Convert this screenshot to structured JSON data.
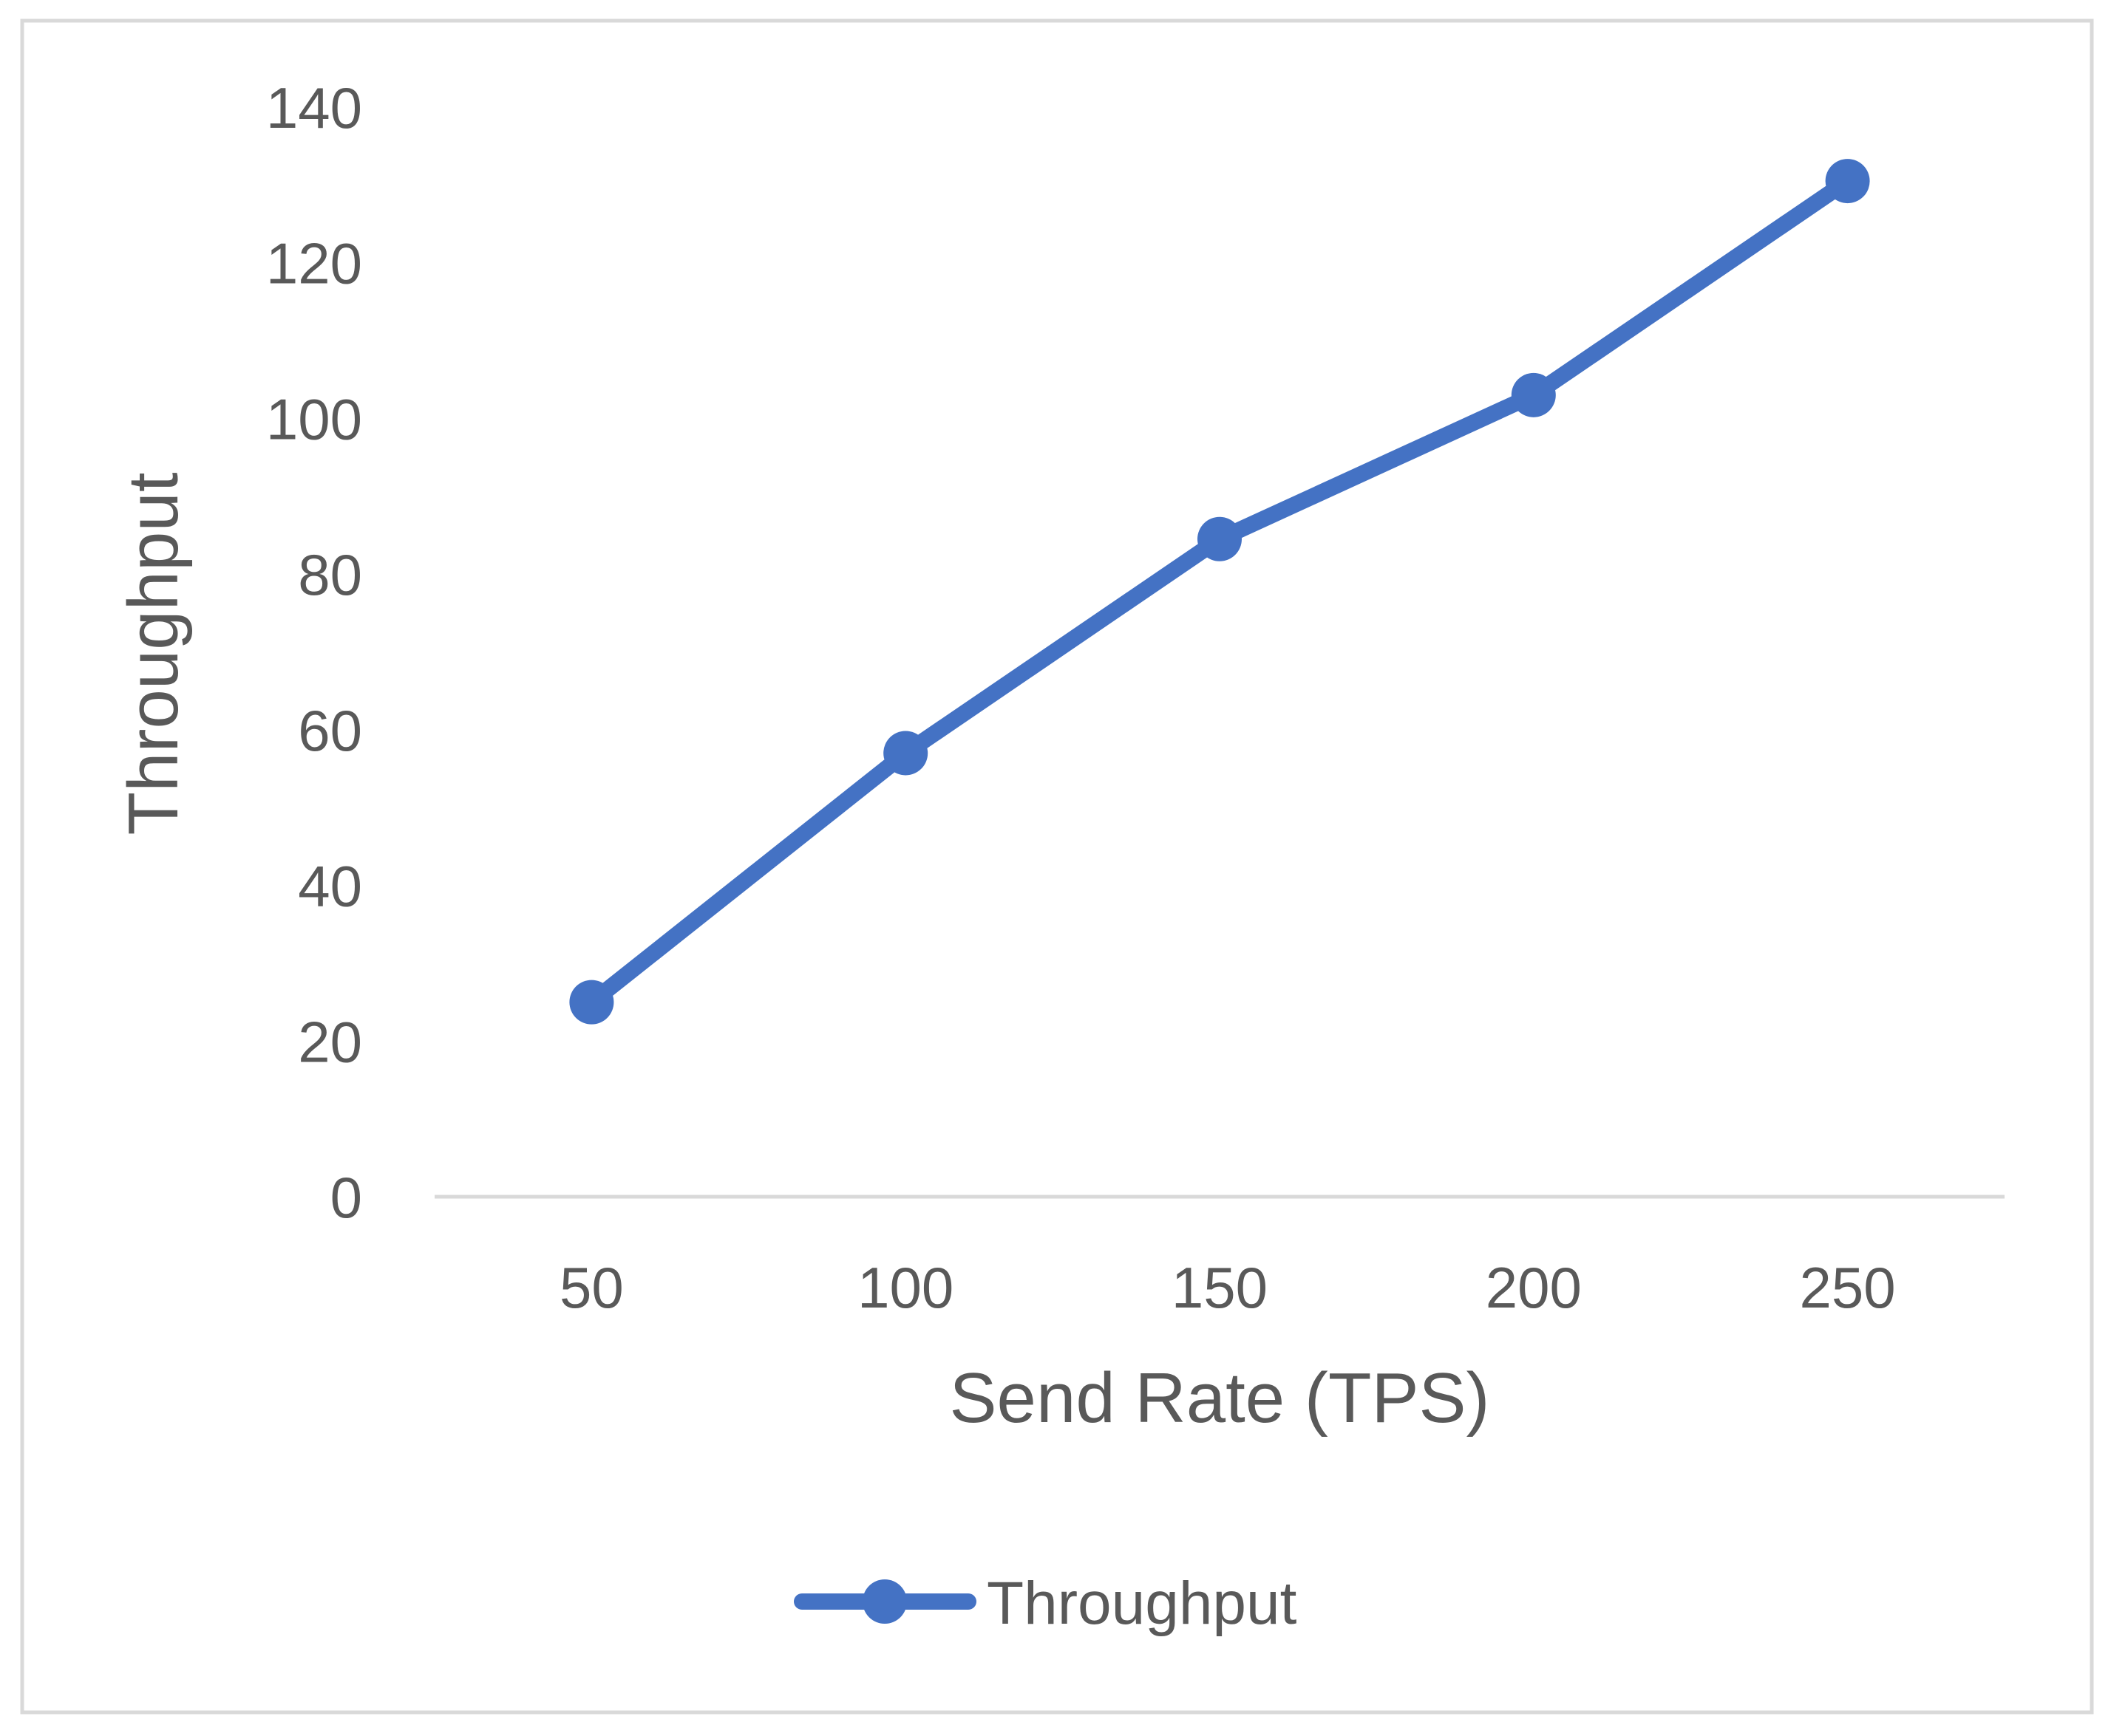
{
  "chart_data": {
    "type": "line",
    "title": "",
    "xlabel": "Send Rate (TPS)",
    "ylabel": "Throughput",
    "categories": [
      "50",
      "100",
      "150",
      "200",
      "250"
    ],
    "series": [
      {
        "name": "Throughput",
        "color": "#4472C4",
        "values": [
          25,
          57,
          84.5,
          103,
          130.5
        ]
      }
    ],
    "y_ticks": [
      "0",
      "20",
      "40",
      "60",
      "80",
      "100",
      "120",
      "140"
    ],
    "ylim": [
      0,
      140
    ],
    "grid": false,
    "legend": "bottom-center",
    "colors": {
      "series": "#4472C4",
      "text": "#595959",
      "axis": "#d9d9d9",
      "border": "#d9d9d9"
    }
  }
}
